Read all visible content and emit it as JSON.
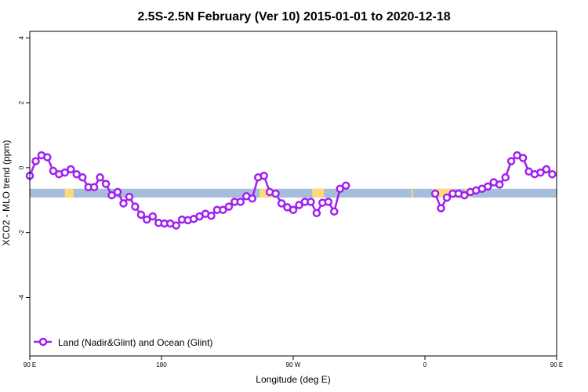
{
  "chart_data": {
    "type": "line",
    "title": "2.5S-2.5N February (Ver 10)   2015-01-01 to 2020-12-18",
    "xlabel": "Longitude (deg E)",
    "ylabel": "XCO2 - MLO trend (ppm)",
    "xlim": [
      90,
      450
    ],
    "ylim": [
      -5.8,
      4.2
    ],
    "x_ticks": [
      {
        "value": 90,
        "label": "90 E"
      },
      {
        "value": 180,
        "label": "180"
      },
      {
        "value": 270,
        "label": "90 W"
      },
      {
        "value": 360,
        "label": "0"
      },
      {
        "value": 450,
        "label": "90 E"
      },
      {
        "value": 540,
        "label": "180"
      }
    ],
    "y_ticks": [
      {
        "value": 4,
        "label": "4"
      },
      {
        "value": 2,
        "label": "2"
      },
      {
        "value": 0,
        "label": "0"
      },
      {
        "value": -2,
        "label": "-2"
      },
      {
        "value": -4,
        "label": "-4"
      }
    ],
    "grid": false,
    "legend_position": "bottom-left",
    "series_color": "#a020f0",
    "surface_band": {
      "y_top": -0.65,
      "y_bottom": -0.92,
      "ocean_color": "#a6bddb",
      "land_color": "#fdd97a",
      "land_x": [
        [
          114,
          118
        ],
        [
          116,
          120
        ],
        [
          247,
          258
        ],
        [
          283,
          291
        ],
        [
          351,
          352
        ],
        [
          365,
          380
        ],
        [
          387,
          392
        ],
        [
          491,
          494
        ],
        [
          500,
          503
        ],
        [
          506,
          509
        ],
        [
          543,
          547
        ]
      ]
    },
    "series": [
      {
        "name": "Land (Nadir&Glint) and Ocean (Glint)",
        "segments": [
          {
            "x": [
              90,
              94,
              98,
              102,
              106,
              110,
              114,
              118,
              122,
              126,
              130,
              134,
              138,
              142,
              146,
              150,
              154,
              158,
              162,
              166,
              170,
              174,
              178,
              182,
              186,
              190,
              194,
              198,
              202,
              206,
              210,
              214,
              218,
              222,
              226,
              230,
              234,
              238,
              242,
              246,
              250,
              254,
              258,
              262,
              266,
              270,
              274,
              278,
              282,
              286,
              290,
              294,
              298,
              302,
              306,
              310,
              314,
              318,
              322,
              326,
              330,
              334,
              338,
              342,
              346,
              350,
              354,
              358,
              362
            ],
            "y": [
              -0.25,
              0.2,
              0.38,
              0.32,
              -0.1,
              -0.2,
              -0.15,
              -0.05,
              -0.2,
              -0.3,
              -0.6,
              -0.6,
              -0.3,
              -0.5,
              -0.85,
              -0.75,
              -1.1,
              -0.9,
              -1.2,
              -1.45,
              -1.6,
              -1.5,
              -1.7,
              -1.72,
              -1.72,
              -1.78,
              -1.6,
              -1.62,
              -1.58,
              -1.5,
              -1.42,
              -1.48,
              -1.3,
              -1.3,
              -1.2,
              -1.05,
              -1.05,
              -0.88,
              -0.95,
              -0.3,
              -0.25,
              -0.75,
              -0.8,
              -1.1,
              -1.22,
              -1.3,
              -1.15,
              -1.05,
              -1.05,
              -1.4,
              -1.08,
              -1.05,
              -1.35,
              -0.65,
              -0.55,
              null,
              null,
              null,
              null,
              null,
              null,
              null,
              null,
              null,
              null,
              null,
              null,
              null,
              null
            ]
          },
          {
            "x": [
              367,
              371,
              375,
              379,
              383,
              387,
              391,
              395,
              399,
              403,
              407,
              411,
              415,
              419,
              423,
              427,
              431,
              435,
              439,
              443,
              447,
              451,
              455,
              459,
              463,
              467,
              471,
              475,
              479,
              483,
              487,
              491,
              495,
              499,
              503,
              507,
              511,
              515,
              519,
              523,
              527,
              531,
              535,
              539
            ],
            "y": [
              -0.8,
              -1.25,
              -0.92,
              -0.8,
              -0.8,
              -0.85,
              -0.75,
              -0.7,
              -0.65,
              -0.58,
              -0.45,
              -0.52,
              -0.3,
              0.2,
              0.38,
              0.3,
              -0.12,
              -0.2,
              -0.15,
              -0.05,
              -0.2,
              -0.28,
              -0.6,
              -0.6,
              -0.3,
              -0.5,
              -0.85,
              -0.75,
              -1.1,
              -0.92,
              null,
              null,
              null,
              null,
              null,
              null,
              null,
              null,
              null,
              null,
              null,
              null,
              null,
              null
            ]
          }
        ]
      }
    ]
  }
}
